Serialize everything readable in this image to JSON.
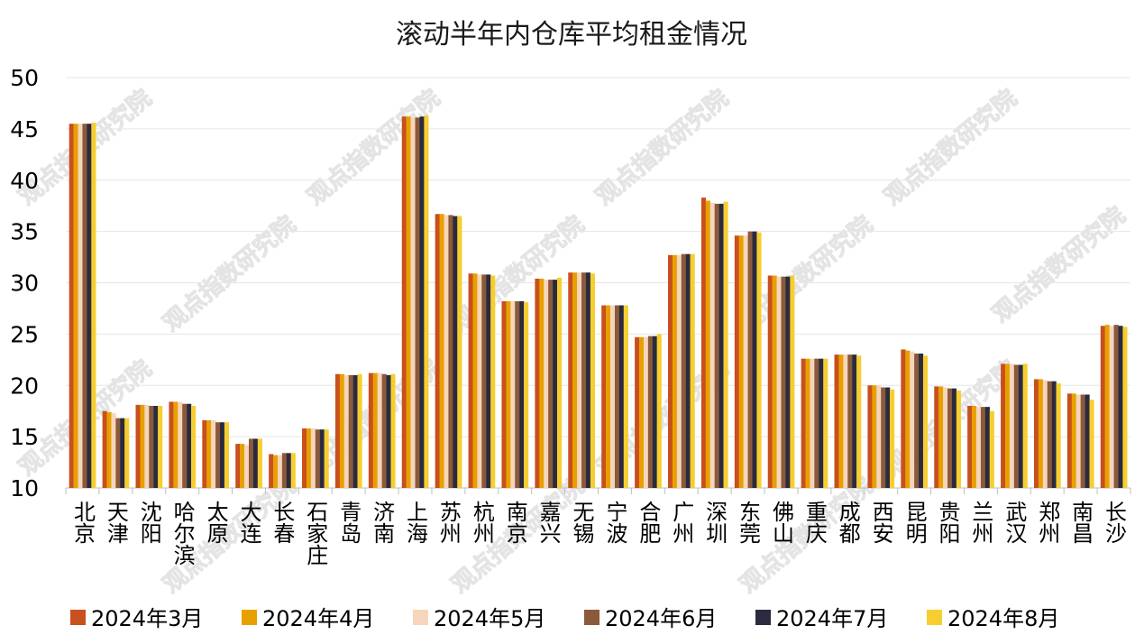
{
  "chart_data": {
    "type": "bar",
    "title": "滚动半年内仓库平均租金情况",
    "xlabel": "",
    "ylabel": "",
    "ylim": [
      10,
      50
    ],
    "yticks": [
      10,
      15,
      20,
      25,
      30,
      35,
      40,
      45,
      50
    ],
    "grid": true,
    "legend_position": "bottom",
    "categories": [
      "北京",
      "天津",
      "沈阳",
      "哈尔滨",
      "太原",
      "大连",
      "长春",
      "石家庄",
      "青岛",
      "济南",
      "上海",
      "苏州",
      "杭州",
      "南京",
      "嘉兴",
      "无锡",
      "宁波",
      "合肥",
      "广州",
      "深圳",
      "东莞",
      "佛山",
      "重庆",
      "成都",
      "西安",
      "昆明",
      "贵阳",
      "兰州",
      "武汉",
      "郑州",
      "南昌",
      "长沙"
    ],
    "series": [
      {
        "name": "2024年3月",
        "color": "#C8501E",
        "values": [
          45.5,
          17.5,
          18.1,
          18.4,
          16.6,
          14.3,
          13.3,
          15.8,
          21.1,
          21.2,
          46.2,
          36.7,
          30.9,
          28.2,
          30.4,
          31.0,
          27.8,
          24.7,
          32.7,
          38.3,
          34.6,
          30.7,
          22.6,
          23.0,
          20.0,
          23.5,
          19.9,
          18.0,
          22.1,
          20.6,
          19.2,
          25.8
        ]
      },
      {
        "name": "2024年4月",
        "color": "#E8A000",
        "values": [
          45.5,
          17.4,
          18.1,
          18.4,
          16.6,
          14.3,
          13.2,
          15.8,
          21.1,
          21.2,
          46.2,
          36.7,
          30.9,
          28.2,
          30.4,
          31.0,
          27.8,
          24.7,
          32.7,
          38.0,
          34.6,
          30.7,
          22.6,
          23.0,
          20.0,
          23.4,
          19.9,
          18.0,
          22.1,
          20.6,
          19.2,
          25.9
        ]
      },
      {
        "name": "2024年5月",
        "color": "#F5D6BC",
        "values": [
          45.5,
          17.3,
          18.1,
          18.4,
          16.6,
          14.2,
          13.2,
          15.8,
          21.0,
          21.2,
          46.1,
          36.6,
          30.8,
          28.2,
          30.3,
          31.0,
          27.8,
          24.7,
          32.7,
          37.8,
          34.6,
          30.6,
          22.6,
          23.0,
          20.0,
          23.3,
          19.8,
          17.9,
          22.1,
          20.5,
          19.1,
          25.8
        ]
      },
      {
        "name": "2024年6月",
        "color": "#8B5A3A",
        "values": [
          45.5,
          16.8,
          18.0,
          18.2,
          16.4,
          14.8,
          13.4,
          15.7,
          21.0,
          21.1,
          46.1,
          36.6,
          30.8,
          28.2,
          30.3,
          31.0,
          27.8,
          24.8,
          32.8,
          37.7,
          35.0,
          30.6,
          22.6,
          23.0,
          19.8,
          23.1,
          19.7,
          17.9,
          22.0,
          20.4,
          19.1,
          25.9
        ]
      },
      {
        "name": "2024年7月",
        "color": "#2B2B3F",
        "values": [
          45.5,
          16.8,
          18.0,
          18.2,
          16.4,
          14.8,
          13.4,
          15.7,
          21.0,
          21.0,
          46.2,
          36.5,
          30.8,
          28.2,
          30.3,
          31.0,
          27.8,
          24.8,
          32.8,
          37.7,
          35.0,
          30.6,
          22.6,
          23.0,
          19.8,
          23.1,
          19.7,
          17.9,
          22.0,
          20.4,
          19.1,
          25.8
        ]
      },
      {
        "name": "2024年8月",
        "color": "#F6CE30",
        "values": [
          45.6,
          16.8,
          18.0,
          18.0,
          16.4,
          14.8,
          13.4,
          15.7,
          21.1,
          21.1,
          46.3,
          36.5,
          30.7,
          28.1,
          30.5,
          30.9,
          27.8,
          25.0,
          32.8,
          37.9,
          34.9,
          30.7,
          22.6,
          22.9,
          19.6,
          22.9,
          19.5,
          17.5,
          22.1,
          20.2,
          18.6,
          25.7
        ]
      }
    ]
  },
  "watermark_text": "观点指数研究院",
  "colors": {
    "grid": "#e6e6e6",
    "axis": "#bfbfbf",
    "text": "#000000"
  }
}
